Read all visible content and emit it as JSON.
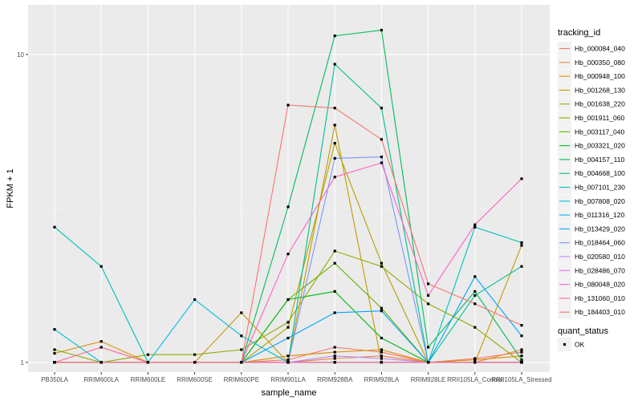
{
  "chart_data": {
    "type": "line",
    "xlabel": "sample_name",
    "ylabel": "FPKM + 1",
    "y_scale": "log10",
    "ylim": [
      0.93,
      14.5
    ],
    "y_ticks": [
      1,
      10
    ],
    "y_tick_labels": [
      "1",
      "10"
    ],
    "grid": true,
    "legend_placement": "right",
    "background": "#ebebeb",
    "categories": [
      "PB350LA",
      "RRIM600LA",
      "RRIM600LE",
      "RRIM600SE",
      "RRIM600PE",
      "RRIM901LA",
      "RRIM928BA",
      "RRIM928LA",
      "RRIM928LE",
      "RRII105LA_Control",
      "RRII105LA_Stressed"
    ],
    "legend_title": "tracking_id",
    "series": [
      {
        "name": "Hb_000084_040",
        "color": "#F8766D",
        "values": [
          1.0,
          1.0,
          1.0,
          1.0,
          1.0,
          1.02,
          1.12,
          1.08,
          1.0,
          1.03,
          1.08
        ]
      },
      {
        "name": "Hb_000350_080",
        "color": "#EC8239",
        "values": [
          1.0,
          1.0,
          1.0,
          1.0,
          1.0,
          1.0,
          1.03,
          1.05,
          1.0,
          1.0,
          1.1
        ]
      },
      {
        "name": "Hb_000948_100",
        "color": "#DB8E00",
        "values": [
          1.07,
          1.17,
          1.0,
          1.0,
          1.0,
          1.05,
          1.08,
          1.1,
          1.0,
          1.02,
          1.05
        ]
      },
      {
        "name": "Hb_001268_130",
        "color": "#C79800",
        "values": [
          1.0,
          1.0,
          1.0,
          1.0,
          1.45,
          1.0,
          5.9,
          1.0,
          1.0,
          1.0,
          2.4
        ]
      },
      {
        "name": "Hb_001638_220",
        "color": "#AEA200",
        "values": [
          1.0,
          1.0,
          1.0,
          1.0,
          1.0,
          1.3,
          5.15,
          2.1,
          1.0,
          1.0,
          1.0
        ]
      },
      {
        "name": "Hb_001911_060",
        "color": "#8FAA00",
        "values": [
          1.1,
          1.0,
          1.06,
          1.06,
          1.1,
          1.35,
          2.3,
          2.05,
          1.55,
          1.3,
          1.0
        ]
      },
      {
        "name": "Hb_003117_040",
        "color": "#64B200",
        "values": [
          1.0,
          1.0,
          1.0,
          1.0,
          1.0,
          1.6,
          2.1,
          1.5,
          1.0,
          1.0,
          1.0
        ]
      },
      {
        "name": "Hb_003321_020",
        "color": "#00B81B",
        "values": [
          1.0,
          1.0,
          1.0,
          1.0,
          1.0,
          1.6,
          1.7,
          1.2,
          1.0,
          1.0,
          1.0
        ]
      },
      {
        "name": "Hb_004157_110",
        "color": "#00BD5C",
        "values": [
          1.0,
          1.0,
          1.0,
          1.0,
          1.0,
          3.2,
          11.5,
          12.0,
          1.12,
          1.7,
          1.02
        ]
      },
      {
        "name": "Hb_004668_100",
        "color": "#00C08E",
        "values": [
          1.0,
          1.0,
          1.0,
          1.0,
          1.0,
          1.0,
          9.3,
          6.7,
          1.0,
          1.65,
          2.05
        ]
      },
      {
        "name": "Hb_007101_230",
        "color": "#00C1B7",
        "values": [
          2.75,
          2.05,
          1.0,
          1.0,
          1.0,
          1.0,
          1.0,
          1.0,
          1.0,
          2.75,
          2.45
        ]
      },
      {
        "name": "Hb_007808_020",
        "color": "#00BDDC",
        "values": [
          1.28,
          1.0,
          1.0,
          1.6,
          1.22,
          1.0,
          1.0,
          1.0,
          1.0,
          1.0,
          1.0
        ]
      },
      {
        "name": "Hb_011316_120",
        "color": "#00B4EF",
        "values": [
          1.0,
          1.0,
          1.0,
          1.0,
          1.0,
          1.0,
          1.0,
          1.0,
          1.0,
          1.0,
          1.0
        ]
      },
      {
        "name": "Hb_013429_020",
        "color": "#00A5FF",
        "values": [
          1.0,
          1.0,
          1.0,
          1.0,
          1.0,
          1.2,
          1.45,
          1.47,
          1.0,
          1.9,
          1.22
        ]
      },
      {
        "name": "Hb_018464_060",
        "color": "#7997FF",
        "values": [
          1.0,
          1.0,
          1.0,
          1.0,
          1.0,
          1.0,
          4.6,
          4.65,
          1.0,
          1.0,
          1.0
        ]
      },
      {
        "name": "Hb_020580_010",
        "color": "#BA85FF",
        "values": [
          1.0,
          1.0,
          1.0,
          1.0,
          1.0,
          1.0,
          1.05,
          1.03,
          1.0,
          1.0,
          1.0
        ]
      },
      {
        "name": "Hb_028486_070",
        "color": "#E66FF0",
        "values": [
          1.0,
          1.0,
          1.0,
          1.0,
          1.0,
          1.0,
          1.0,
          1.0,
          1.0,
          1.0,
          1.0
        ]
      },
      {
        "name": "Hb_080048_020",
        "color": "#FF61C3",
        "values": [
          1.0,
          1.0,
          1.0,
          1.0,
          1.0,
          2.25,
          4.0,
          4.45,
          1.65,
          2.8,
          3.95
        ]
      },
      {
        "name": "Hb_131060_010",
        "color": "#FF6892",
        "values": [
          1.0,
          1.12,
          1.0,
          1.0,
          1.0,
          1.0,
          1.0,
          1.0,
          1.0,
          1.0,
          1.0
        ]
      },
      {
        "name": "Hb_184403_010",
        "color": "#F8766D",
        "values": [
          1.0,
          1.0,
          1.0,
          1.0,
          1.0,
          6.85,
          6.7,
          5.3,
          1.8,
          1.55,
          1.32
        ]
      }
    ],
    "legend2_title": "quant_status",
    "legend2_items": [
      "OK"
    ]
  }
}
